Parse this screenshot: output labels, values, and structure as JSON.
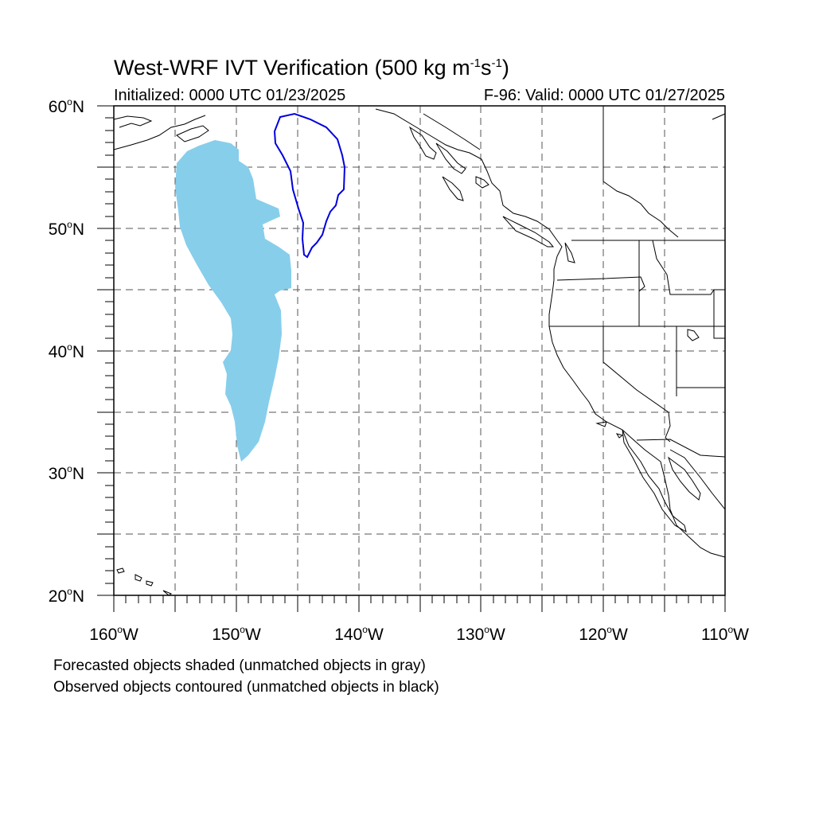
{
  "title": {
    "main": "West-WRF IVT Verification (500 kg m",
    "exp1": "-1",
    "mid": "s",
    "exp2": "-1",
    "end": ")"
  },
  "subtitle": {
    "left": "Initialized: 0000 UTC 01/23/2025",
    "right": "F-96: Valid: 0000 UTC 01/27/2025"
  },
  "lat_labels": [
    {
      "num": "60",
      "suffix": "N"
    },
    {
      "num": "50",
      "suffix": "N"
    },
    {
      "num": "40",
      "suffix": "N"
    },
    {
      "num": "30",
      "suffix": "N"
    },
    {
      "num": "20",
      "suffix": "N"
    }
  ],
  "lon_labels": [
    {
      "num": "160",
      "suffix": "W"
    },
    {
      "num": "150",
      "suffix": "W"
    },
    {
      "num": "140",
      "suffix": "W"
    },
    {
      "num": "130",
      "suffix": "W"
    },
    {
      "num": "120",
      "suffix": "W"
    },
    {
      "num": "110",
      "suffix": "W"
    }
  ],
  "degree_symbol": "o",
  "notes": [
    "Forecasted objects shaded (unmatched objects in gray)",
    "Observed objects contoured (unmatched objects in black)"
  ],
  "map": {
    "lon_range": [
      -160,
      -110
    ],
    "lat_range": [
      20,
      60
    ],
    "forecast_object_color": "#87CEEB",
    "observed_object_color": "#0000DD",
    "coastline_color": "#000000",
    "grid_style": "dashed"
  }
}
